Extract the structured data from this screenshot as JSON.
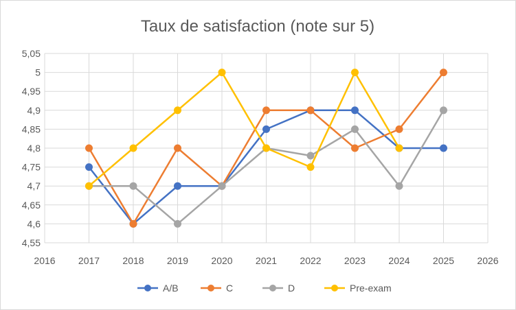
{
  "chart_data": {
    "type": "line",
    "title": "Taux de satisfaction (note sur 5)",
    "xlabel": "",
    "ylabel": "",
    "xlim": [
      2016,
      2026
    ],
    "ylim": [
      4.55,
      5.05
    ],
    "x_ticks": [
      "2016",
      "2017",
      "2018",
      "2019",
      "2020",
      "2021",
      "2022",
      "2023",
      "2024",
      "2025",
      "2026"
    ],
    "y_ticks": [
      "4,55",
      "4,6",
      "4,65",
      "4,7",
      "4,75",
      "4,8",
      "4,85",
      "4,9",
      "4,95",
      "5",
      "5,05"
    ],
    "grid": true,
    "legend_position": "bottom",
    "series": [
      {
        "name": "A/B",
        "color": "#4472C4",
        "points": [
          [
            2017,
            4.75
          ],
          [
            2018,
            4.6
          ],
          [
            2019,
            4.7
          ],
          [
            2020,
            4.7
          ],
          [
            2021,
            4.85
          ],
          [
            2022,
            4.9
          ],
          [
            2023,
            4.9
          ],
          [
            2024,
            4.8
          ],
          [
            2025,
            4.8
          ]
        ]
      },
      {
        "name": "C",
        "color": "#ED7D31",
        "points": [
          [
            2017,
            4.8
          ],
          [
            2018,
            4.6
          ],
          [
            2019,
            4.8
          ],
          [
            2020,
            4.7
          ],
          [
            2021,
            4.9
          ],
          [
            2022,
            4.9
          ],
          [
            2023,
            4.8
          ],
          [
            2024,
            4.85
          ],
          [
            2025,
            5.0
          ]
        ]
      },
      {
        "name": "D",
        "color": "#A5A5A5",
        "points": [
          [
            2017,
            4.7
          ],
          [
            2018,
            4.7
          ],
          [
            2019,
            4.6
          ],
          [
            2020,
            4.7
          ],
          [
            2021,
            4.8
          ],
          [
            2022,
            4.78
          ],
          [
            2023,
            4.85
          ],
          [
            2024,
            4.7
          ],
          [
            2025,
            4.9
          ]
        ]
      },
      {
        "name": "Pre-exam",
        "color": "#FFC000",
        "points": [
          [
            2017,
            4.7
          ],
          [
            2018,
            4.8
          ],
          [
            2019,
            4.9
          ],
          [
            2020,
            5.0
          ],
          [
            2021,
            4.8
          ],
          [
            2022,
            4.75
          ],
          [
            2023,
            5.0
          ],
          [
            2024,
            4.8
          ]
        ]
      }
    ]
  }
}
